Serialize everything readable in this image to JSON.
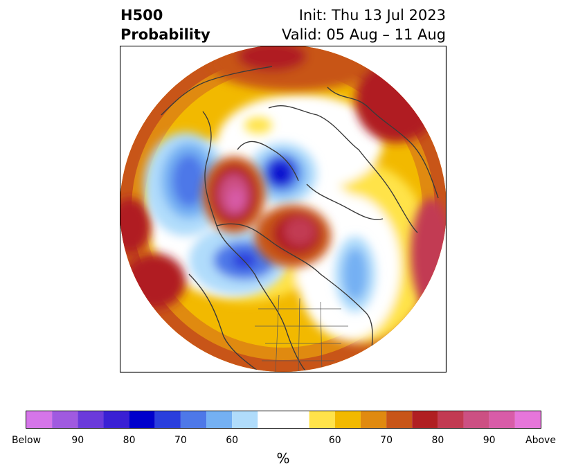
{
  "title": {
    "left_line1": "H500",
    "left_line2": "Probability",
    "right_line1": "Init: Thu 13 Jul 2023",
    "right_line2": "Valid: 05 Aug – 11 Aug"
  },
  "colorbar": {
    "colors": [
      "#d575e9",
      "#a05ae0",
      "#6b3adb",
      "#3a20d4",
      "#0000cc",
      "#2a3edd",
      "#4e78e8",
      "#74b0f3",
      "#b0dcfb",
      "#ffffff",
      "#ffe34a",
      "#f2b900",
      "#e08a10",
      "#c85518",
      "#b01f22",
      "#c23a52",
      "#cc5083",
      "#d85ca8",
      "#e676da"
    ],
    "ticks": [
      "Below",
      "90",
      "80",
      "70",
      "60",
      "60",
      "70",
      "80",
      "90",
      "Above"
    ],
    "units": "%"
  }
}
